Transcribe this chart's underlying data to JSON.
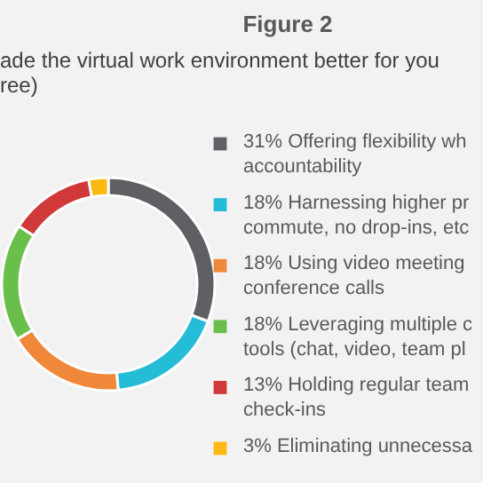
{
  "chart_data": {
    "type": "donut",
    "title": "Figure 2",
    "subtitle": "ade the virtual work environment better for you\nree)",
    "categories": [
      "31% Offering flexibility wh\naccountability",
      "18% Harnessing higher pr\ncommute, no drop-ins, etc",
      "18% Using video meeting\nconference calls",
      "18% Leveraging multiple c\ntools (chat, video, team pl",
      "13% Holding regular team\ncheck-ins",
      "3% Eliminating unnecessa"
    ],
    "values": [
      31,
      18,
      18,
      18,
      13,
      3
    ],
    "colors": [
      "#5f6064",
      "#24bcd6",
      "#f0883a",
      "#6abf4b",
      "#d0383a",
      "#fdb913"
    ],
    "legend": "right"
  }
}
